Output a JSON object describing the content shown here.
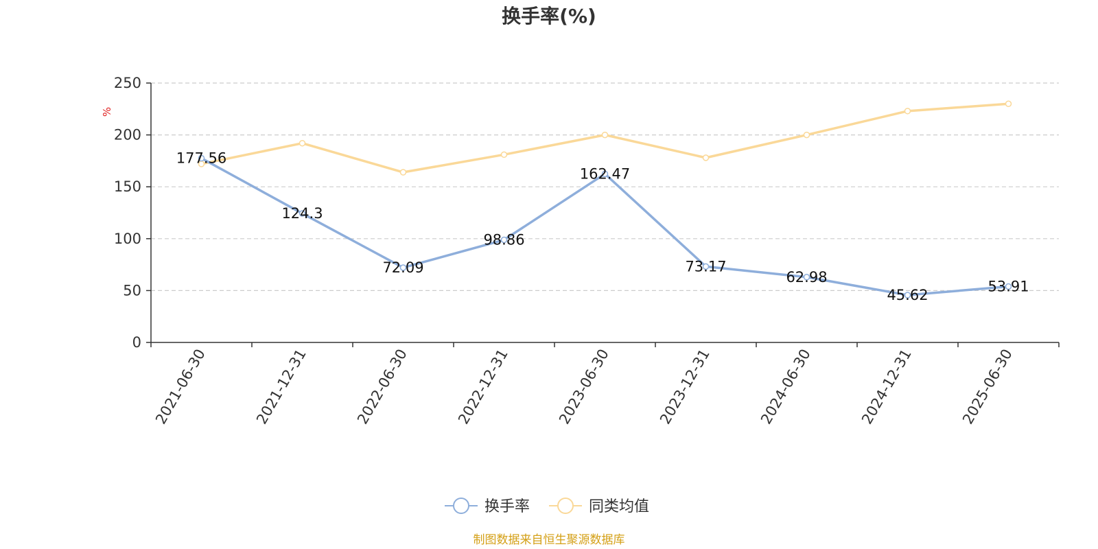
{
  "chart_data": {
    "type": "line",
    "title": "换手率(%)",
    "ylabel": "%",
    "xlabel": "",
    "categories": [
      "2021-06-30",
      "2021-12-31",
      "2022-06-30",
      "2022-12-31",
      "2023-06-30",
      "2023-12-31",
      "2024-06-30",
      "2024-12-31",
      "2025-06-30"
    ],
    "ylim": [
      0,
      250
    ],
    "yticks": [
      0,
      50,
      100,
      150,
      200,
      250
    ],
    "grid": true,
    "legend_position": "bottom",
    "series": [
      {
        "name": "换手率",
        "color": "#8eaedb",
        "values": [
          177.56,
          124.3,
          72.09,
          98.86,
          162.47,
          73.17,
          62.98,
          45.62,
          53.91
        ],
        "data_labels": [
          "177.56",
          "124.3",
          "72.09",
          "98.86",
          "162.47",
          "73.17",
          "62.98",
          "45.62",
          "53.91"
        ]
      },
      {
        "name": "同类均值",
        "color": "#fad898",
        "values": [
          172,
          192,
          164,
          181,
          200,
          178,
          200,
          223,
          230
        ]
      }
    ]
  },
  "source_text": "制图数据来自恒生聚源数据库",
  "colors": {
    "unit_label": "#e02020",
    "source_text": "#d4a017",
    "axis": "#333333",
    "grid": "#cccccc"
  }
}
